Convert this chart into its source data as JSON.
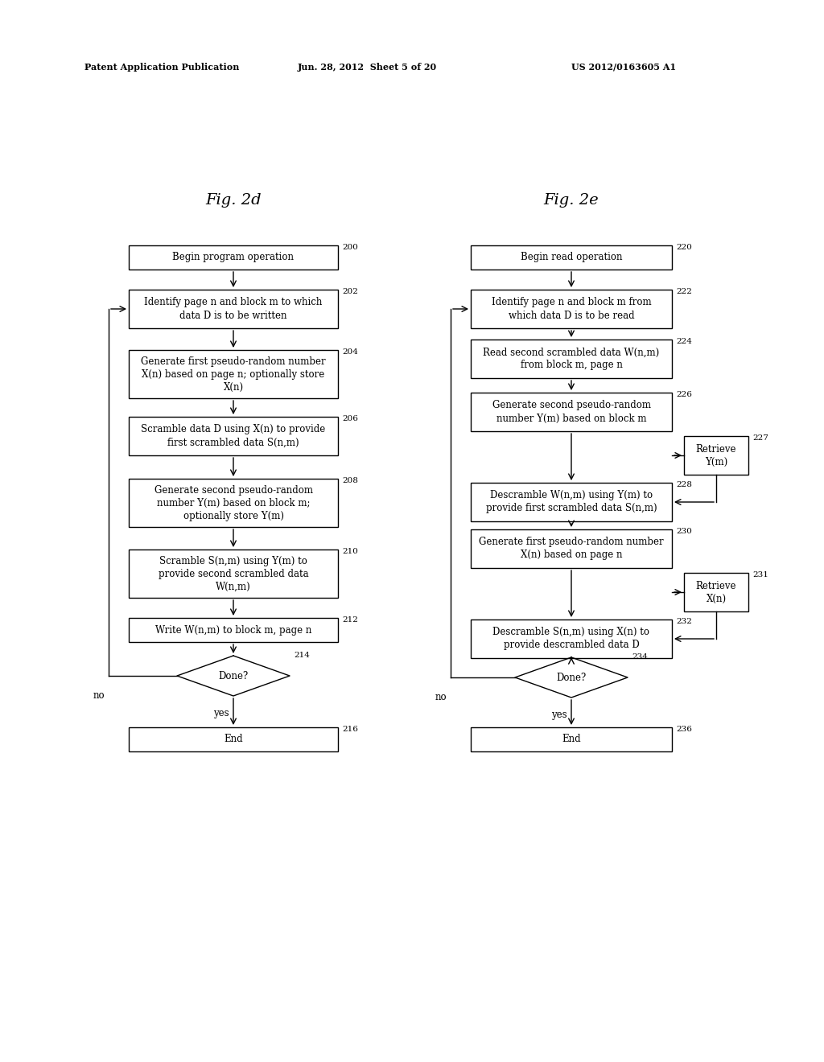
{
  "header_left": "Patent Application Publication",
  "header_mid": "Jun. 28, 2012  Sheet 5 of 20",
  "header_right": "US 2012/0163605 A1",
  "title_left": "Fig. 2d",
  "title_right": "Fig. 2e",
  "fig2d": {
    "label_200": "200",
    "label_202": "202",
    "label_204": "204",
    "label_206": "206",
    "label_208": "208",
    "label_210": "210",
    "label_212": "212",
    "label_214": "214",
    "label_216": "216",
    "box_200_text": "Begin program operation",
    "box_202_text": "Identify page n and block m to which\ndata D is to be written",
    "box_204_text": "Generate first pseudo-random number\nX(n) based on page n; optionally store\nX(n)",
    "box_206_text": "Scramble data D using X(n) to provide\nfirst scrambled data S(n,m)",
    "box_208_text": "Generate second pseudo-random\nnumber Y(m) based on block m;\noptionally store Y(m)",
    "box_210_text": "Scramble S(n,m) using Y(m) to\nprovide second scrambled data\nW(n,m)",
    "box_212_text": "Write W(n,m) to block m, page n",
    "box_214_text": "Done?",
    "box_216_text": "End"
  },
  "fig2e": {
    "label_220": "220",
    "label_222": "222",
    "label_224": "224",
    "label_226": "226",
    "label_227": "227",
    "label_228": "228",
    "label_230": "230",
    "label_231": "231",
    "label_232": "232",
    "label_234": "234",
    "label_236": "236",
    "box_220_text": "Begin read operation",
    "box_222_text": "Identify page n and block m from\nwhich data D is to be read",
    "box_224_text": "Read second scrambled data W(n,m)\nfrom block m, page n",
    "box_226_text": "Generate second pseudo-random\nnumber Y(m) based on block m",
    "box_227_text": "Retrieve\nY(m)",
    "box_228_text": "Descramble W(n,m) using Y(m) to\nprovide first scrambled data S(n,m)",
    "box_230_text": "Generate first pseudo-random number\nX(n) based on page n",
    "box_231_text": "Retrieve\nX(n)",
    "box_232_text": "Descramble S(n,m) using X(n) to\nprovide descrambled data D",
    "box_234_text": "Done?",
    "box_236_text": "End"
  }
}
